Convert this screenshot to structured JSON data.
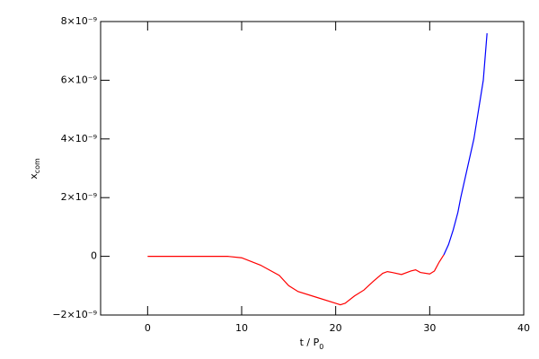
{
  "chart_data": {
    "type": "line",
    "x_label": {
      "base": "t / P",
      "sub": "0"
    },
    "y_label": {
      "base": "x",
      "sub": "com"
    },
    "xlim": [
      -5,
      40
    ],
    "xticks": [
      0,
      10,
      20,
      30,
      40
    ],
    "ylim": [
      -2e-09,
      8e-09
    ],
    "yticks": [
      {
        "value": -2e-09,
        "label": "−2×10⁻⁹"
      },
      0,
      {
        "value": 2e-09,
        "label": "2×10⁻⁹"
      },
      {
        "value": 4e-09,
        "label": "4×10⁻⁹"
      },
      {
        "value": 6e-09,
        "label": "6×10⁻⁹"
      },
      {
        "value": 8e-09,
        "label": "8×10⁻⁹"
      }
    ],
    "series": [
      {
        "color": "#ff0000",
        "x": [
          0,
          5,
          8.5,
          10,
          12,
          14,
          15,
          16,
          18,
          20,
          20.5,
          21,
          22,
          23,
          24,
          25,
          25.5,
          26,
          27,
          28,
          28.5,
          29,
          30,
          30.5,
          31,
          31.5
        ],
        "values": [
          0,
          0,
          0,
          -5e-11,
          -3e-10,
          -6.5e-10,
          -1e-09,
          -1.2e-09,
          -1.4e-09,
          -1.6e-09,
          -1.65e-09,
          -1.6e-09,
          -1.35e-09,
          -1.15e-09,
          -8.5e-10,
          -5.8e-10,
          -5.2e-10,
          -5.5e-10,
          -6.2e-10,
          -5e-10,
          -4.6e-10,
          -5.5e-10,
          -6e-10,
          -5e-10,
          -2e-10,
          5e-11
        ]
      },
      {
        "color": "#0000ff",
        "x": [
          31.5,
          32,
          32.5,
          33,
          33.3,
          34,
          34.7,
          35.2,
          35.7,
          36.1
        ],
        "values": [
          5e-11,
          4e-10,
          9e-10,
          1.5e-09,
          2e-09,
          3e-09,
          4e-09,
          5e-09,
          6e-09,
          7.6e-09
        ]
      }
    ]
  }
}
